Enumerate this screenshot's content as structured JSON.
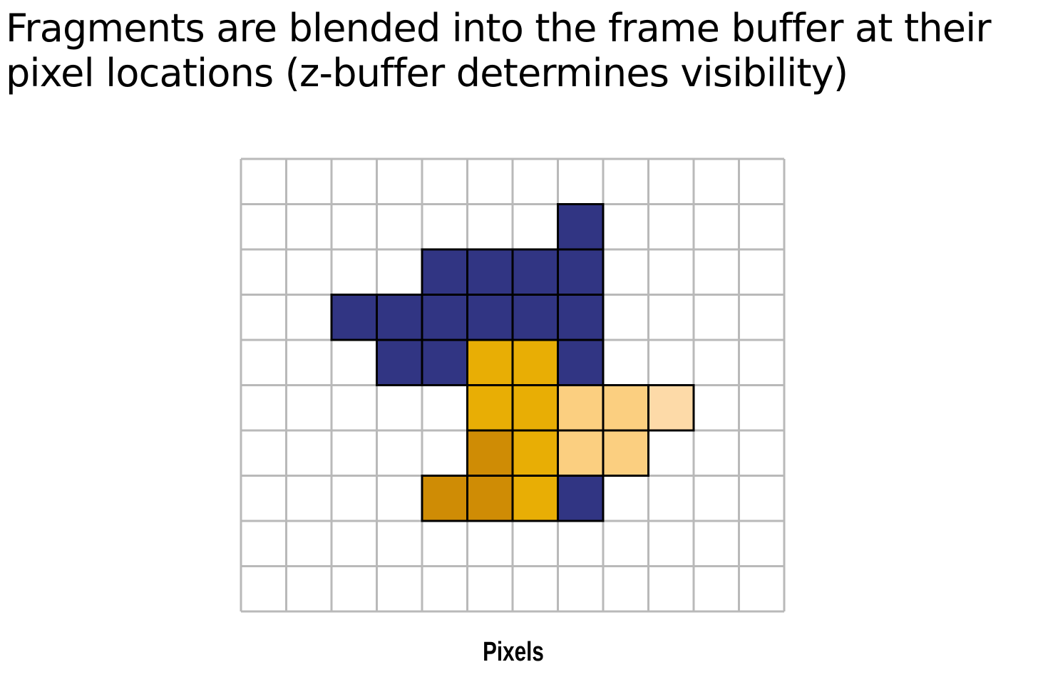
{
  "title": {
    "line1": "Fragments are blended into the frame buffer at their",
    "line2": "pixel locations (z-buffer determines visibility)"
  },
  "grid": {
    "columns": 12,
    "rows": 10,
    "label": "Pixels",
    "line_color": "#b9b9b9",
    "colors": {
      "blue": "#313583",
      "yellow": "#e8ae05",
      "dark_yellow": "#cf8c05",
      "light_orange": "#fbcf80",
      "lightest_orange": "#fddaa8"
    },
    "cells": [
      {
        "col": 7,
        "row": 1,
        "color": "blue"
      },
      {
        "col": 4,
        "row": 2,
        "color": "blue"
      },
      {
        "col": 5,
        "row": 2,
        "color": "blue"
      },
      {
        "col": 6,
        "row": 2,
        "color": "blue"
      },
      {
        "col": 7,
        "row": 2,
        "color": "blue"
      },
      {
        "col": 2,
        "row": 3,
        "color": "blue"
      },
      {
        "col": 3,
        "row": 3,
        "color": "blue"
      },
      {
        "col": 4,
        "row": 3,
        "color": "blue"
      },
      {
        "col": 5,
        "row": 3,
        "color": "blue"
      },
      {
        "col": 6,
        "row": 3,
        "color": "blue"
      },
      {
        "col": 7,
        "row": 3,
        "color": "blue"
      },
      {
        "col": 3,
        "row": 4,
        "color": "blue"
      },
      {
        "col": 4,
        "row": 4,
        "color": "blue"
      },
      {
        "col": 5,
        "row": 4,
        "color": "yellow"
      },
      {
        "col": 6,
        "row": 4,
        "color": "yellow"
      },
      {
        "col": 7,
        "row": 4,
        "color": "blue"
      },
      {
        "col": 5,
        "row": 5,
        "color": "yellow"
      },
      {
        "col": 6,
        "row": 5,
        "color": "yellow"
      },
      {
        "col": 7,
        "row": 5,
        "color": "light_orange"
      },
      {
        "col": 8,
        "row": 5,
        "color": "light_orange"
      },
      {
        "col": 9,
        "row": 5,
        "color": "lightest_orange"
      },
      {
        "col": 5,
        "row": 6,
        "color": "dark_yellow"
      },
      {
        "col": 6,
        "row": 6,
        "color": "yellow"
      },
      {
        "col": 7,
        "row": 6,
        "color": "light_orange"
      },
      {
        "col": 8,
        "row": 6,
        "color": "light_orange"
      },
      {
        "col": 4,
        "row": 7,
        "color": "dark_yellow"
      },
      {
        "col": 5,
        "row": 7,
        "color": "dark_yellow"
      },
      {
        "col": 6,
        "row": 7,
        "color": "yellow"
      },
      {
        "col": 7,
        "row": 7,
        "color": "blue"
      }
    ]
  }
}
